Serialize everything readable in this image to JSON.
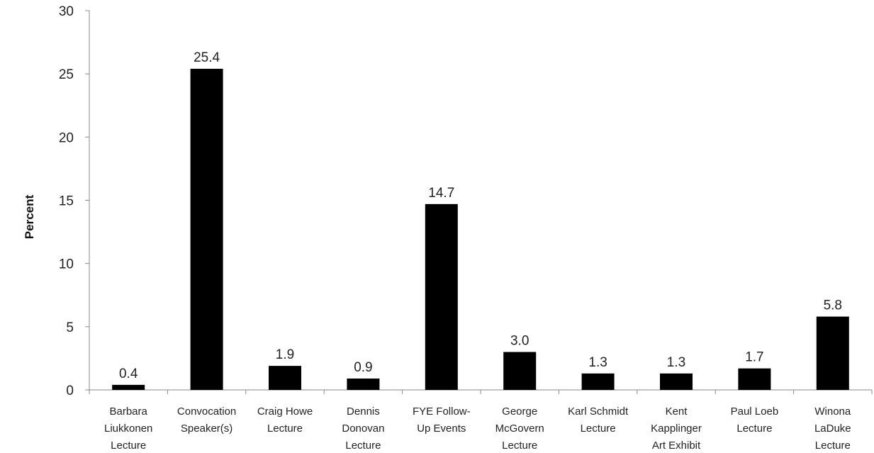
{
  "chart_data": {
    "type": "bar",
    "title": "",
    "xlabel": "",
    "ylabel": "Percent",
    "ylim": [
      0,
      30
    ],
    "yticks": [
      "0",
      "5",
      "10",
      "15",
      "20",
      "25",
      "30"
    ],
    "grid": false,
    "legend": "none",
    "bar_color": "#000000",
    "categories": [
      "Barbara Liukkonen Lecture",
      "Convocation Speaker(s)",
      "Craig Howe Lecture",
      "Dennis Donovan Lecture",
      "FYE Follow-Up Events",
      "George McGovern Lecture",
      "Karl Schmidt Lecture",
      "Kent Kapplinger Art Exhibit",
      "Paul Loeb Lecture",
      "Winona LaDuke Lecture"
    ],
    "category_lines": [
      [
        "Barbara",
        "Liukkonen",
        "Lecture"
      ],
      [
        "Convocation",
        "Speaker(s)"
      ],
      [
        "Craig Howe",
        "Lecture"
      ],
      [
        "Dennis",
        "Donovan",
        "Lecture"
      ],
      [
        "FYE Follow-",
        "Up Events"
      ],
      [
        "George",
        "McGovern",
        "Lecture"
      ],
      [
        "Karl Schmidt",
        "Lecture"
      ],
      [
        "Kent",
        "Kapplinger",
        "Art Exhibit"
      ],
      [
        "Paul Loeb",
        "Lecture"
      ],
      [
        "Winona",
        "LaDuke",
        "Lecture"
      ]
    ],
    "values": [
      0.4,
      25.4,
      1.9,
      0.9,
      14.7,
      3.0,
      1.3,
      1.3,
      1.7,
      5.8
    ],
    "value_labels": [
      "0.4",
      "25.4",
      "1.9",
      "0.9",
      "14.7",
      "3.0",
      "1.3",
      "1.3",
      "1.7",
      "5.8"
    ]
  }
}
